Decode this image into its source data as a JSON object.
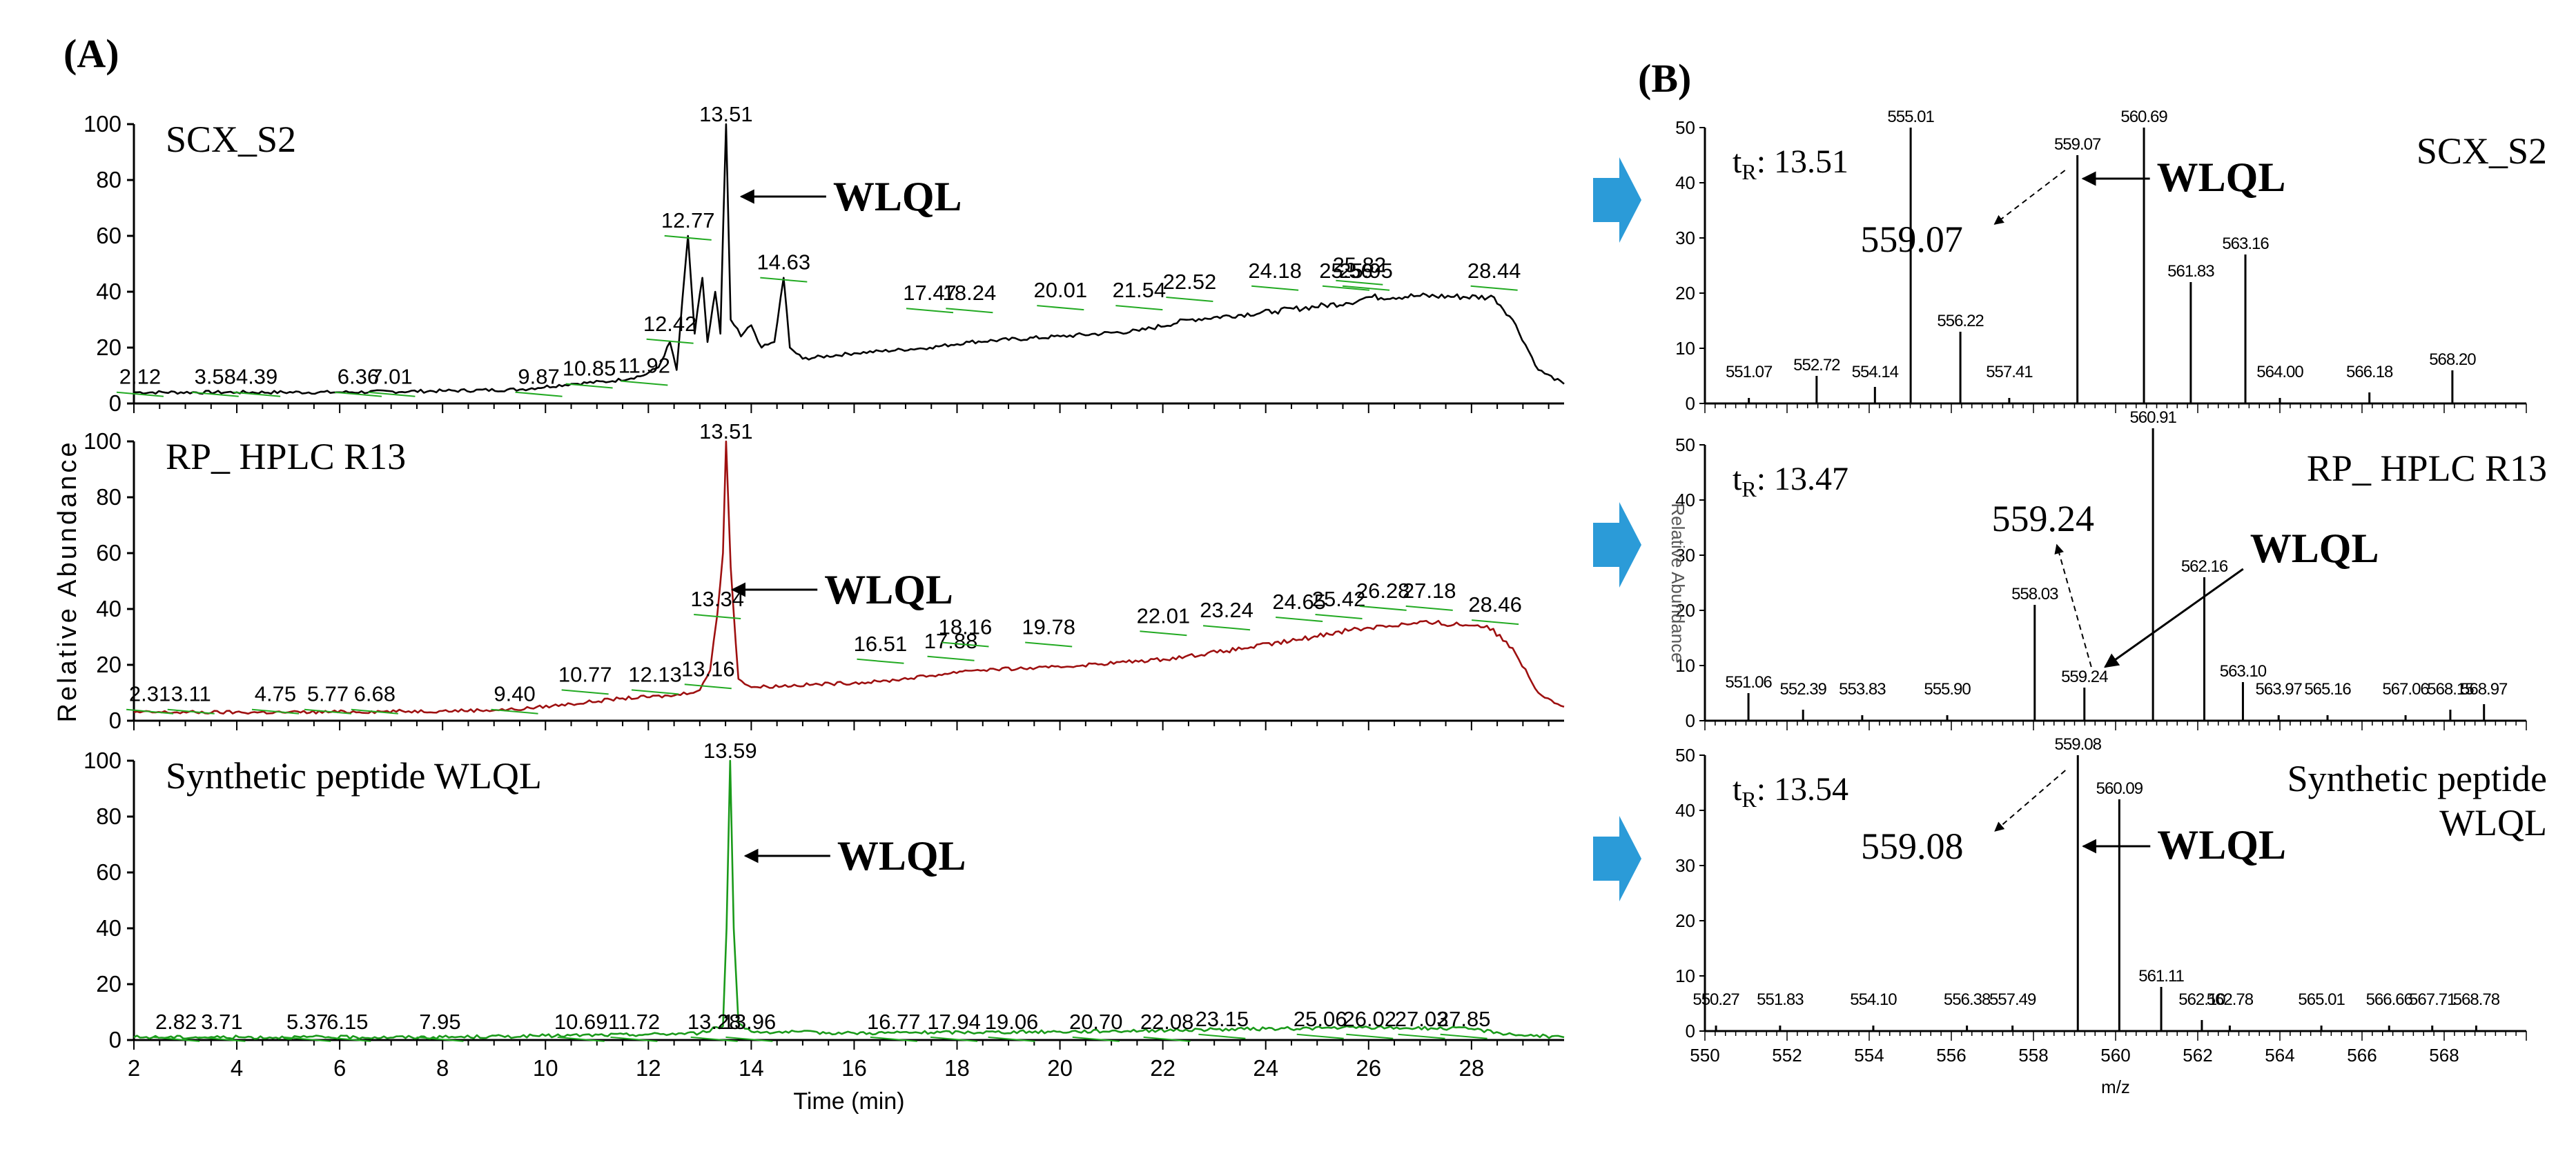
{
  "panel_a": {
    "label": "(A)"
  },
  "panel_b": {
    "label": "(B)"
  },
  "chart_data": [
    {
      "type": "line",
      "id": "chrom-scx",
      "panel": "A",
      "title": "SCX_S2",
      "annotation": "WLQL",
      "xlabel": "Time (min)",
      "ylabel": "Relative Abundance",
      "xlim": [
        2,
        29.8
      ],
      "ylim": [
        0,
        100
      ],
      "yticks": [
        0,
        20,
        40,
        60,
        80,
        100
      ],
      "xticks": [
        2,
        4,
        6,
        8,
        10,
        12,
        14,
        16,
        18,
        20,
        22,
        24,
        26,
        28
      ],
      "show_xtick_labels": false,
      "color": "#000000",
      "highlight_color": "#22aa22",
      "annotation_peak": 13.51,
      "points": [
        [
          2,
          4
        ],
        [
          4,
          4
        ],
        [
          6,
          4
        ],
        [
          8,
          4.5
        ],
        [
          9.5,
          5
        ],
        [
          10.5,
          7
        ],
        [
          11.3,
          8
        ],
        [
          11.9,
          10
        ],
        [
          12.2,
          13
        ],
        [
          12.42,
          22
        ],
        [
          12.55,
          12
        ],
        [
          12.77,
          60
        ],
        [
          12.9,
          25
        ],
        [
          13.05,
          45
        ],
        [
          13.15,
          22
        ],
        [
          13.3,
          40
        ],
        [
          13.4,
          25
        ],
        [
          13.51,
          100
        ],
        [
          13.6,
          30
        ],
        [
          13.8,
          24
        ],
        [
          14,
          28
        ],
        [
          14.2,
          20
        ],
        [
          14.45,
          22
        ],
        [
          14.63,
          45
        ],
        [
          14.75,
          20
        ],
        [
          15,
          16
        ],
        [
          16,
          18
        ],
        [
          17.47,
          20
        ],
        [
          18.24,
          22
        ],
        [
          20.01,
          24
        ],
        [
          21.54,
          26
        ],
        [
          22.52,
          30
        ],
        [
          24.18,
          33
        ],
        [
          25.56,
          36
        ],
        [
          25.82,
          37
        ],
        [
          25.95,
          38
        ],
        [
          27,
          38.5
        ],
        [
          28.44,
          38
        ],
        [
          28.8,
          30
        ],
        [
          29.3,
          12
        ],
        [
          29.8,
          7
        ]
      ],
      "peak_labels": [
        {
          "x": 2.12,
          "y": 6,
          "label": "2.12"
        },
        {
          "x": 3.58,
          "y": 6,
          "label": "3.58"
        },
        {
          "x": 4.39,
          "y": 6,
          "label": "4.39"
        },
        {
          "x": 6.36,
          "y": 6,
          "label": "6.36"
        },
        {
          "x": 7.01,
          "y": 6,
          "label": "7.01"
        },
        {
          "x": 9.87,
          "y": 6,
          "label": "9.87"
        },
        {
          "x": 10.85,
          "y": 9,
          "label": "10.85"
        },
        {
          "x": 11.92,
          "y": 10,
          "label": "11.92"
        },
        {
          "x": 12.42,
          "y": 25,
          "label": "12.42"
        },
        {
          "x": 12.77,
          "y": 62,
          "label": "12.77"
        },
        {
          "x": 13.51,
          "y": 100,
          "label": "13.51"
        },
        {
          "x": 14.63,
          "y": 47,
          "label": "14.63"
        },
        {
          "x": 17.47,
          "y": 36,
          "label": "17.47"
        },
        {
          "x": 18.24,
          "y": 36,
          "label": "18.24"
        },
        {
          "x": 20.01,
          "y": 37,
          "label": "20.01"
        },
        {
          "x": 21.54,
          "y": 37,
          "label": "21.54"
        },
        {
          "x": 22.52,
          "y": 40,
          "label": "22.52"
        },
        {
          "x": 24.18,
          "y": 44,
          "label": "24.18"
        },
        {
          "x": 25.56,
          "y": 44,
          "label": "25.56"
        },
        {
          "x": 25.82,
          "y": 46,
          "label": "25.82"
        },
        {
          "x": 25.95,
          "y": 44,
          "label": "25.95"
        },
        {
          "x": 28.44,
          "y": 44,
          "label": "28.44"
        }
      ]
    },
    {
      "type": "line",
      "id": "chrom-rp",
      "panel": "A",
      "title": "RP_ HPLC R13",
      "annotation": "WLQL",
      "xlabel": "Time (min)",
      "ylabel": "Relative Abundance",
      "xlim": [
        2,
        29.8
      ],
      "ylim": [
        0,
        100
      ],
      "yticks": [
        0,
        20,
        40,
        60,
        80,
        100
      ],
      "xticks": [
        2,
        4,
        6,
        8,
        10,
        12,
        14,
        16,
        18,
        20,
        22,
        24,
        26,
        28
      ],
      "show_xtick_labels": false,
      "color": "#9e1010",
      "highlight_color": "#22aa22",
      "annotation_peak": 13.34,
      "points": [
        [
          2,
          3
        ],
        [
          5,
          3
        ],
        [
          8,
          3.5
        ],
        [
          9.4,
          4
        ],
        [
          10.5,
          6
        ],
        [
          11.5,
          8
        ],
        [
          12.5,
          9
        ],
        [
          13,
          11
        ],
        [
          13.2,
          18
        ],
        [
          13.34,
          38
        ],
        [
          13.45,
          60
        ],
        [
          13.51,
          100
        ],
        [
          13.6,
          55
        ],
        [
          13.75,
          15
        ],
        [
          14,
          12
        ],
        [
          16.51,
          14
        ],
        [
          17.88,
          17
        ],
        [
          18.16,
          18
        ],
        [
          19.78,
          19
        ],
        [
          22.01,
          22
        ],
        [
          23.24,
          25
        ],
        [
          24.65,
          29
        ],
        [
          25.42,
          32
        ],
        [
          26.28,
          34
        ],
        [
          27.18,
          35
        ],
        [
          28.3,
          34
        ],
        [
          28.8,
          26
        ],
        [
          29.3,
          10
        ],
        [
          29.8,
          5
        ]
      ],
      "peak_labels": [
        {
          "x": 2.31,
          "y": 6,
          "label": "2.31"
        },
        {
          "x": 3.11,
          "y": 6,
          "label": "3.11"
        },
        {
          "x": 4.75,
          "y": 6,
          "label": "4.75"
        },
        {
          "x": 5.77,
          "y": 6,
          "label": "5.77"
        },
        {
          "x": 6.68,
          "y": 6,
          "label": "6.68"
        },
        {
          "x": 9.4,
          "y": 6,
          "label": "9.40"
        },
        {
          "x": 10.77,
          "y": 13,
          "label": "10.77"
        },
        {
          "x": 12.13,
          "y": 13,
          "label": "12.13"
        },
        {
          "x": 13.16,
          "y": 15,
          "label": "13.16"
        },
        {
          "x": 13.34,
          "y": 40,
          "label": "13.34"
        },
        {
          "x": 13.51,
          "y": 100,
          "label": "13.51"
        },
        {
          "x": 16.51,
          "y": 24,
          "label": "16.51"
        },
        {
          "x": 17.88,
          "y": 25,
          "label": "17.88"
        },
        {
          "x": 18.16,
          "y": 30,
          "label": "18.16"
        },
        {
          "x": 19.78,
          "y": 30,
          "label": "19.78"
        },
        {
          "x": 22.01,
          "y": 34,
          "label": "22.01"
        },
        {
          "x": 23.24,
          "y": 36,
          "label": "23.24"
        },
        {
          "x": 24.65,
          "y": 39,
          "label": "24.65"
        },
        {
          "x": 25.42,
          "y": 40,
          "label": "25.42"
        },
        {
          "x": 26.28,
          "y": 43,
          "label": "26.28"
        },
        {
          "x": 27.18,
          "y": 43,
          "label": "27.18"
        },
        {
          "x": 28.46,
          "y": 38,
          "label": "28.46"
        }
      ]
    },
    {
      "type": "line",
      "id": "chrom-syn",
      "panel": "A",
      "title": "Synthetic peptide WLQL",
      "annotation": "WLQL",
      "xlabel": "Time (min)",
      "ylabel": "Relative Abundance",
      "xlim": [
        2,
        29.8
      ],
      "ylim": [
        0,
        100
      ],
      "yticks": [
        0,
        20,
        40,
        60,
        80,
        100
      ],
      "xticks": [
        2,
        4,
        6,
        8,
        10,
        12,
        14,
        16,
        18,
        20,
        22,
        24,
        26,
        28
      ],
      "show_xtick_labels": true,
      "color": "#1a9a1a",
      "highlight_color": "#22aa22",
      "annotation_peak": 13.59,
      "points": [
        [
          2,
          1
        ],
        [
          8,
          1
        ],
        [
          10,
          1.5
        ],
        [
          12,
          2
        ],
        [
          13,
          2.5
        ],
        [
          13.45,
          5
        ],
        [
          13.52,
          40
        ],
        [
          13.59,
          100
        ],
        [
          13.66,
          40
        ],
        [
          13.75,
          6
        ],
        [
          14,
          3
        ],
        [
          16,
          2.5
        ],
        [
          20,
          3
        ],
        [
          24,
          4
        ],
        [
          26,
          4.5
        ],
        [
          28,
          4
        ],
        [
          28.8,
          2
        ],
        [
          29.8,
          1
        ]
      ],
      "peak_labels": [
        {
          "x": 2.82,
          "y": 3,
          "label": "2.82"
        },
        {
          "x": 3.71,
          "y": 3,
          "label": "3.71"
        },
        {
          "x": 5.37,
          "y": 3,
          "label": "5.37"
        },
        {
          "x": 6.15,
          "y": 3,
          "label": "6.15"
        },
        {
          "x": 7.95,
          "y": 3,
          "label": "7.95"
        },
        {
          "x": 10.69,
          "y": 3,
          "label": "10.69"
        },
        {
          "x": 11.72,
          "y": 3,
          "label": "11.72"
        },
        {
          "x": 13.28,
          "y": 3,
          "label": "13.28"
        },
        {
          "x": 13.59,
          "y": 100,
          "label": "13.59"
        },
        {
          "x": 13.96,
          "y": 3,
          "label": "13.96"
        },
        {
          "x": 16.77,
          "y": 3,
          "label": "16.77"
        },
        {
          "x": 17.94,
          "y": 3,
          "label": "17.94"
        },
        {
          "x": 19.06,
          "y": 3,
          "label": "19.06"
        },
        {
          "x": 20.7,
          "y": 3,
          "label": "20.70"
        },
        {
          "x": 22.08,
          "y": 3,
          "label": "22.08"
        },
        {
          "x": 23.15,
          "y": 4,
          "label": "23.15"
        },
        {
          "x": 25.06,
          "y": 4,
          "label": "25.06"
        },
        {
          "x": 26.02,
          "y": 4,
          "label": "26.02"
        },
        {
          "x": 27.03,
          "y": 4,
          "label": "27.03"
        },
        {
          "x": 27.85,
          "y": 4,
          "label": "27.85"
        }
      ]
    },
    {
      "type": "bar",
      "id": "ms-scx",
      "panel": "B",
      "title": "SCX_S2",
      "retention": "13.51",
      "highlight_label": "559.07",
      "highlight_mz": 559.07,
      "annotation": "WLQL",
      "xlabel": "m/z",
      "xlim": [
        550,
        570
      ],
      "ylim": [
        0,
        50
      ],
      "yticks": [
        0,
        10,
        20,
        30,
        40,
        50
      ],
      "xticks": [
        550,
        552,
        554,
        556,
        558,
        560,
        562,
        564,
        566,
        568
      ],
      "show_xtick_labels": false,
      "peaks": [
        {
          "mz": 551.07,
          "intensity": 1,
          "label": "551.07"
        },
        {
          "mz": 552.72,
          "intensity": 5,
          "label": "552.72"
        },
        {
          "mz": 554.14,
          "intensity": 3,
          "label": "554.14"
        },
        {
          "mz": 555.01,
          "intensity": 50,
          "label": "555.01"
        },
        {
          "mz": 556.22,
          "intensity": 13,
          "label": "556.22"
        },
        {
          "mz": 557.41,
          "intensity": 1,
          "label": "557.41"
        },
        {
          "mz": 559.07,
          "intensity": 45,
          "label": "559.07"
        },
        {
          "mz": 560.69,
          "intensity": 50,
          "label": "560.69"
        },
        {
          "mz": 561.83,
          "intensity": 22,
          "label": "561.83"
        },
        {
          "mz": 563.16,
          "intensity": 27,
          "label": "563.16"
        },
        {
          "mz": 564.0,
          "intensity": 1,
          "label": "564.00"
        },
        {
          "mz": 566.18,
          "intensity": 2,
          "label": "566.18"
        },
        {
          "mz": 568.2,
          "intensity": 6,
          "label": "568.20"
        }
      ]
    },
    {
      "type": "bar",
      "id": "ms-rp",
      "panel": "B",
      "title": "RP_ HPLC R13",
      "retention": "13.47",
      "highlight_label": "559.24",
      "highlight_mz": 559.24,
      "annotation": "WLQL",
      "ylabel_faint": "Relative Abundance",
      "xlabel": "m/z",
      "xlim": [
        550,
        570
      ],
      "ylim": [
        0,
        50
      ],
      "yticks": [
        0,
        10,
        20,
        30,
        40,
        50
      ],
      "xticks": [
        550,
        552,
        554,
        556,
        558,
        560,
        562,
        564,
        566,
        568
      ],
      "show_xtick_labels": false,
      "peaks": [
        {
          "mz": 551.06,
          "intensity": 5,
          "label": "551.06"
        },
        {
          "mz": 552.39,
          "intensity": 2,
          "label": "552.39"
        },
        {
          "mz": 553.83,
          "intensity": 1,
          "label": "553.83"
        },
        {
          "mz": 555.9,
          "intensity": 1,
          "label": "555.90"
        },
        {
          "mz": 558.03,
          "intensity": 21,
          "label": "558.03"
        },
        {
          "mz": 559.24,
          "intensity": 6,
          "label": "559.24"
        },
        {
          "mz": 560.91,
          "intensity": 53,
          "label": "560.91"
        },
        {
          "mz": 562.16,
          "intensity": 26,
          "label": "562.16"
        },
        {
          "mz": 563.1,
          "intensity": 7,
          "label": "563.10"
        },
        {
          "mz": 563.97,
          "intensity": 1,
          "label": "563.97"
        },
        {
          "mz": 565.16,
          "intensity": 1,
          "label": "565.16"
        },
        {
          "mz": 567.06,
          "intensity": 1,
          "label": "567.06"
        },
        {
          "mz": 568.15,
          "intensity": 2,
          "label": "568.15"
        },
        {
          "mz": 568.97,
          "intensity": 3,
          "label": "568.97"
        }
      ]
    },
    {
      "type": "bar",
      "id": "ms-syn",
      "panel": "B",
      "title": "Synthetic peptide\nWLQL",
      "retention": "13.54",
      "highlight_label": "559.08",
      "highlight_mz": 559.08,
      "annotation": "WLQL",
      "xlabel": "m/z",
      "xlim": [
        550,
        570
      ],
      "ylim": [
        0,
        50
      ],
      "yticks": [
        0,
        10,
        20,
        30,
        40,
        50
      ],
      "xticks": [
        550,
        552,
        554,
        556,
        558,
        560,
        562,
        564,
        566,
        568
      ],
      "show_xtick_labels": true,
      "peaks": [
        {
          "mz": 550.27,
          "intensity": 1,
          "label": "550.27"
        },
        {
          "mz": 551.83,
          "intensity": 1,
          "label": "551.83"
        },
        {
          "mz": 554.1,
          "intensity": 1,
          "label": "554.10"
        },
        {
          "mz": 556.38,
          "intensity": 1,
          "label": "556.38"
        },
        {
          "mz": 557.49,
          "intensity": 1,
          "label": "557.49"
        },
        {
          "mz": 559.08,
          "intensity": 50,
          "label": "559.08"
        },
        {
          "mz": 560.09,
          "intensity": 42,
          "label": "560.09"
        },
        {
          "mz": 561.11,
          "intensity": 8,
          "label": "561.11"
        },
        {
          "mz": 562.1,
          "intensity": 2,
          "label": "562.10"
        },
        {
          "mz": 562.78,
          "intensity": 1,
          "label": "562.78"
        },
        {
          "mz": 565.01,
          "intensity": 1,
          "label": "565.01"
        },
        {
          "mz": 566.66,
          "intensity": 1,
          "label": "566.66"
        },
        {
          "mz": 567.71,
          "intensity": 1,
          "label": "567.71"
        },
        {
          "mz": 568.78,
          "intensity": 1,
          "label": "568.78"
        }
      ]
    }
  ]
}
